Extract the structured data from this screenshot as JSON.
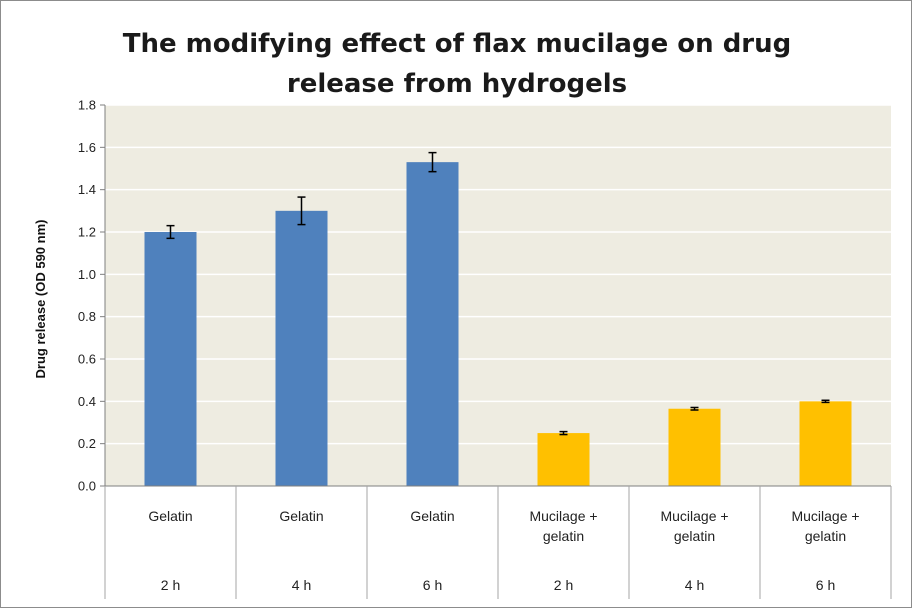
{
  "chart_data": {
    "type": "bar",
    "title_lines": [
      "The modifying effect of flax mucilage on drug",
      "release from hydrogels"
    ],
    "ylabel": "Drug release (OD 590 nm)",
    "xlabel": "",
    "ylim": [
      0,
      1.8
    ],
    "yticks": [
      "0.0",
      "0.2",
      "0.4",
      "0.6",
      "0.8",
      "1.0",
      "1.2",
      "1.4",
      "1.6",
      "1.8"
    ],
    "grid": true,
    "legend": "none",
    "categories": [
      {
        "group_lines": [
          "Gelatin"
        ],
        "time": "2 h"
      },
      {
        "group_lines": [
          "Gelatin"
        ],
        "time": "4 h"
      },
      {
        "group_lines": [
          "Gelatin"
        ],
        "time": "6 h"
      },
      {
        "group_lines": [
          "Mucilage +",
          "gelatin"
        ],
        "time": "2 h"
      },
      {
        "group_lines": [
          "Mucilage +",
          "gelatin"
        ],
        "time": "4 h"
      },
      {
        "group_lines": [
          "Mucilage +",
          "gelatin"
        ],
        "time": "6 h"
      }
    ],
    "values": [
      1.2,
      1.3,
      1.53,
      0.25,
      0.365,
      0.4
    ],
    "errors": [
      0.03,
      0.065,
      0.045,
      0.007,
      0.006,
      0.005
    ],
    "bar_colors": [
      "#4f81bd",
      "#4f81bd",
      "#4f81bd",
      "#ffc000",
      "#ffc000",
      "#ffc000"
    ],
    "plot_background": "#eeece1",
    "gridline_color": "#ffffff"
  }
}
